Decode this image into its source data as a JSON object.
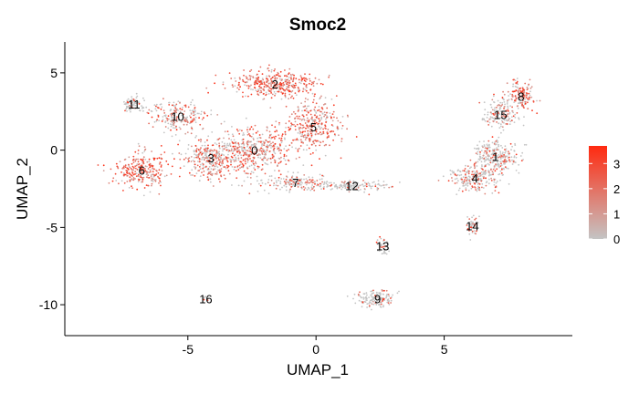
{
  "chart_data": {
    "type": "scatter",
    "title": "Smoc2",
    "xlabel": "UMAP_1",
    "ylabel": "UMAP_2",
    "xlim": [
      -9.8,
      10
    ],
    "ylim": [
      -12,
      7
    ],
    "xticks": [
      -5,
      0,
      5
    ],
    "xtick_labels": [
      "-5",
      "0",
      "5"
    ],
    "yticks": [
      -10,
      -5,
      0,
      5
    ],
    "ytick_labels": [
      "-10",
      "-5",
      "0",
      "5"
    ],
    "grid": false,
    "color_scale": {
      "low_color": "#c4c4c4",
      "high_color": "#ff2a10",
      "range": [
        0,
        3.7
      ],
      "ticks": [
        0,
        1,
        2,
        3
      ],
      "tick_labels": [
        "0",
        "1",
        "2",
        "3"
      ],
      "legend_position": "right"
    },
    "clusters": [
      {
        "label": "0",
        "x": -2.4,
        "y": 0.0,
        "mean_expression": 1.4
      },
      {
        "label": "1",
        "x": 7.0,
        "y": -0.4,
        "mean_expression": 0.6
      },
      {
        "label": "2",
        "x": -1.6,
        "y": 4.3,
        "mean_expression": 1.9
      },
      {
        "label": "3",
        "x": -4.1,
        "y": -0.5,
        "mean_expression": 1.3
      },
      {
        "label": "4",
        "x": 6.2,
        "y": -1.8,
        "mean_expression": 0.6
      },
      {
        "label": "5",
        "x": -0.1,
        "y": 1.5,
        "mean_expression": 1.8
      },
      {
        "label": "6",
        "x": -6.8,
        "y": -1.3,
        "mean_expression": 1.8
      },
      {
        "label": "7",
        "x": -0.8,
        "y": -2.1,
        "mean_expression": 0.7
      },
      {
        "label": "8",
        "x": 8.0,
        "y": 3.5,
        "mean_expression": 1.6
      },
      {
        "label": "9",
        "x": 2.4,
        "y": -9.6,
        "mean_expression": 0.4
      },
      {
        "label": "10",
        "x": -5.4,
        "y": 2.2,
        "mean_expression": 1.2
      },
      {
        "label": "11",
        "x": -7.1,
        "y": 3.0,
        "mean_expression": 0.3
      },
      {
        "label": "12",
        "x": 1.4,
        "y": -2.3,
        "mean_expression": 0.4
      },
      {
        "label": "13",
        "x": 2.6,
        "y": -6.2,
        "mean_expression": 0.4
      },
      {
        "label": "14",
        "x": 6.1,
        "y": -4.9,
        "mean_expression": 0.7
      },
      {
        "label": "15",
        "x": 7.2,
        "y": 2.3,
        "mean_expression": 0.8
      },
      {
        "label": "16",
        "x": -4.3,
        "y": -9.6,
        "mean_expression": 0.5
      }
    ]
  }
}
